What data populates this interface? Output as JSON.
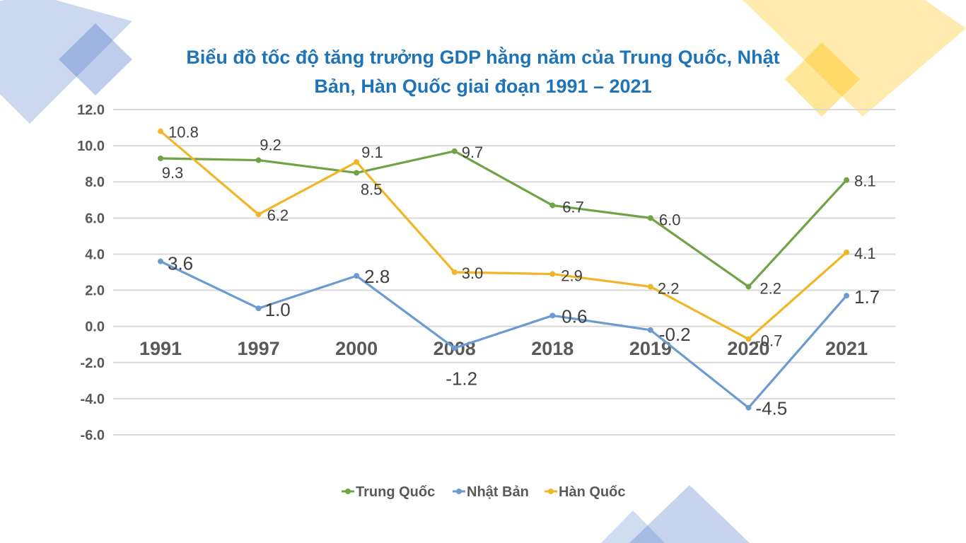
{
  "chart_data": {
    "type": "line",
    "title_lines": [
      "Biểu đồ tốc độ tăng trưởng GDP hằng năm của Trung Quốc, Nhật",
      "Bản, Hàn Quốc giai đoạn 1991 – 2021"
    ],
    "categories": [
      "1991",
      "1997",
      "2000",
      "2008",
      "2018",
      "2019",
      "2020",
      "2021"
    ],
    "y_ticks": [
      "12.0",
      "10.0",
      "8.0",
      "6.0",
      "4.0",
      "2.0",
      "0.0",
      "-2.0",
      "-4.0",
      "-6.0"
    ],
    "ylim": [
      -6,
      12
    ],
    "grid": true,
    "legend_position": "bottom",
    "series": [
      {
        "name": "Trung Quốc",
        "color": "#70a346",
        "values": [
          9.3,
          9.2,
          8.5,
          9.7,
          6.7,
          6.0,
          2.2,
          8.1
        ],
        "labels": [
          "9.3",
          "9.2",
          "8.5",
          "9.7",
          "6.7",
          "6.0",
          "2.2",
          "8.1"
        ]
      },
      {
        "name": "Nhật Bản",
        "color": "#6b9bd0",
        "values": [
          3.6,
          1.0,
          2.8,
          -1.2,
          0.6,
          -0.2,
          -4.5,
          1.7
        ],
        "labels": [
          "3.6",
          "1.0",
          "2.8",
          "-1.2",
          "0.6",
          "-0.2",
          "-4.5",
          "1.7"
        ]
      },
      {
        "name": "Hàn Quốc",
        "color": "#f0b627",
        "values": [
          10.8,
          6.2,
          9.1,
          3.0,
          2.9,
          2.2,
          -0.7,
          4.1
        ],
        "labels": [
          "10.8",
          "6.2",
          "9.1",
          "3.0",
          "2.9",
          "2.2",
          "-0.7",
          "4.1"
        ]
      }
    ]
  },
  "decor": {
    "blue": "#4472c4",
    "gold": "#ffc000"
  }
}
